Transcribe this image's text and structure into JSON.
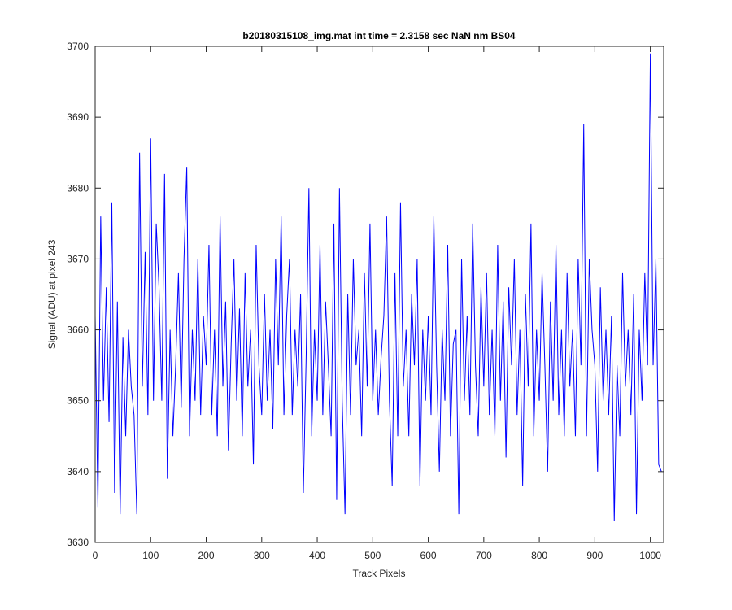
{
  "chart_data": {
    "type": "line",
    "title": "b20180315108_img.mat int time = 2.3158 sec  NaN nm BS04",
    "xlabel": "Track Pixels",
    "ylabel": "Signal (ADU) at pixel 243",
    "xlim": [
      0,
      1024
    ],
    "ylim": [
      3630,
      3700
    ],
    "xticks": [
      0,
      100,
      200,
      300,
      400,
      500,
      600,
      700,
      800,
      900,
      1000
    ],
    "yticks": [
      3630,
      3640,
      3650,
      3660,
      3670,
      3680,
      3690,
      3700
    ],
    "grid": false,
    "x": [
      0,
      5,
      10,
      15,
      20,
      25,
      30,
      35,
      40,
      45,
      50,
      55,
      60,
      65,
      70,
      75,
      80,
      85,
      90,
      95,
      100,
      105,
      110,
      115,
      120,
      125,
      130,
      135,
      140,
      145,
      150,
      155,
      160,
      165,
      170,
      175,
      180,
      185,
      190,
      195,
      200,
      205,
      210,
      215,
      220,
      225,
      230,
      235,
      240,
      245,
      250,
      255,
      260,
      265,
      270,
      275,
      280,
      285,
      290,
      295,
      300,
      305,
      310,
      315,
      320,
      325,
      330,
      335,
      340,
      345,
      350,
      355,
      360,
      365,
      370,
      375,
      380,
      385,
      390,
      395,
      400,
      405,
      410,
      415,
      420,
      425,
      430,
      435,
      440,
      445,
      450,
      455,
      460,
      465,
      470,
      475,
      480,
      485,
      490,
      495,
      500,
      505,
      510,
      515,
      520,
      525,
      530,
      535,
      540,
      545,
      550,
      555,
      560,
      565,
      570,
      575,
      580,
      585,
      590,
      595,
      600,
      605,
      610,
      615,
      620,
      625,
      630,
      635,
      640,
      645,
      650,
      655,
      660,
      665,
      670,
      675,
      680,
      685,
      690,
      695,
      700,
      705,
      710,
      715,
      720,
      725,
      730,
      735,
      740,
      745,
      750,
      755,
      760,
      765,
      770,
      775,
      780,
      785,
      790,
      795,
      800,
      805,
      810,
      815,
      820,
      825,
      830,
      835,
      840,
      845,
      850,
      855,
      860,
      865,
      870,
      875,
      880,
      885,
      890,
      895,
      900,
      905,
      910,
      915,
      920,
      925,
      930,
      935,
      940,
      945,
      950,
      955,
      960,
      965,
      970,
      975,
      980,
      985,
      990,
      995,
      1000,
      1005,
      1010,
      1015,
      1020
    ],
    "series": [
      {
        "name": "signal",
        "color": "#0000ff",
        "values": [
          3662,
          3635,
          3676,
          3650,
          3666,
          3647,
          3678,
          3637,
          3664,
          3634,
          3659,
          3645,
          3660,
          3652,
          3648,
          3634,
          3685,
          3652,
          3671,
          3648,
          3687,
          3650,
          3675,
          3666,
          3650,
          3682,
          3639,
          3660,
          3645,
          3655,
          3668,
          3649,
          3670,
          3683,
          3645,
          3660,
          3650,
          3670,
          3648,
          3662,
          3655,
          3672,
          3648,
          3660,
          3645,
          3676,
          3652,
          3664,
          3643,
          3658,
          3670,
          3650,
          3663,
          3645,
          3668,
          3652,
          3660,
          3641,
          3672,
          3655,
          3648,
          3665,
          3650,
          3660,
          3646,
          3670,
          3655,
          3676,
          3648,
          3662,
          3670,
          3648,
          3660,
          3652,
          3665,
          3637,
          3656,
          3680,
          3645,
          3660,
          3650,
          3672,
          3648,
          3664,
          3655,
          3645,
          3675,
          3636,
          3680,
          3650,
          3634,
          3665,
          3648,
          3670,
          3655,
          3660,
          3645,
          3668,
          3652,
          3675,
          3650,
          3660,
          3648,
          3656,
          3662,
          3676,
          3650,
          3638,
          3668,
          3645,
          3678,
          3652,
          3660,
          3645,
          3665,
          3655,
          3670,
          3638,
          3660,
          3650,
          3662,
          3648,
          3676,
          3655,
          3640,
          3660,
          3650,
          3672,
          3645,
          3658,
          3660,
          3634,
          3670,
          3650,
          3662,
          3648,
          3675,
          3655,
          3645,
          3666,
          3652,
          3668,
          3648,
          3660,
          3645,
          3672,
          3650,
          3664,
          3642,
          3666,
          3655,
          3670,
          3648,
          3660,
          3638,
          3665,
          3652,
          3675,
          3645,
          3660,
          3650,
          3668,
          3655,
          3640,
          3664,
          3650,
          3672,
          3648,
          3660,
          3645,
          3668,
          3652,
          3660,
          3645,
          3670,
          3655,
          3689,
          3645,
          3670,
          3660,
          3655,
          3640,
          3666,
          3650,
          3660,
          3648,
          3662,
          3633,
          3655,
          3645,
          3668,
          3652,
          3660,
          3648,
          3665,
          3634,
          3660,
          3650,
          3668,
          3655,
          3699,
          3655,
          3670,
          3641,
          3640
        ]
      }
    ]
  }
}
